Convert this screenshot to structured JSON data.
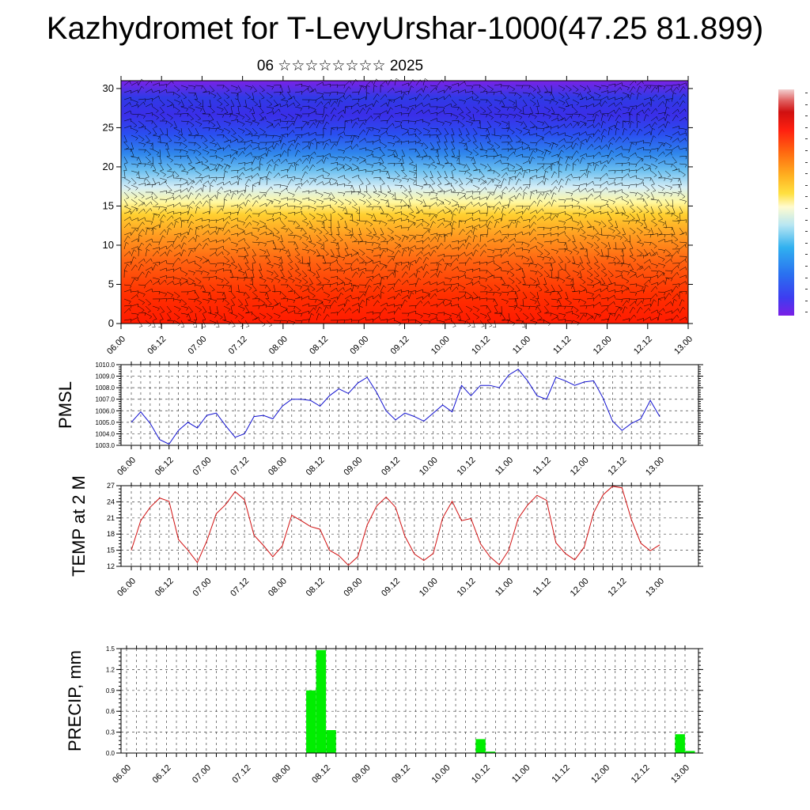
{
  "title": "Kazhydromet for T-LevyUrshar-1000(47.25 81.899)",
  "subtitle": "06 ☆☆☆☆☆☆☆☆ 2025",
  "colors": {
    "pmsl_line": "#1010d0",
    "temp_line": "#d01010",
    "precip_bar": "#00ee00",
    "grid": "#444444"
  },
  "chart_data": [
    {
      "type": "heatmap",
      "title": "",
      "xlabel": "",
      "ylabel": "",
      "x_ticks": [
        "06.00",
        "06.12",
        "07.00",
        "07.12",
        "08.00",
        "08.12",
        "09.00",
        "09.12",
        "10.00",
        "10.12",
        "11.00",
        "11.12",
        "12.00",
        "12.12",
        "13.00"
      ],
      "y_ticks": [
        0,
        5,
        10,
        15,
        20,
        25,
        30
      ],
      "ylim": [
        0,
        31
      ],
      "overlay": "wind barbs",
      "colorbar": "purple-blue-cyan-yellow-orange-red-pink"
    },
    {
      "type": "line",
      "ylabel": "PMSL",
      "ylim": [
        1003.0,
        1010.0
      ],
      "y_ticks": [
        "1003.0",
        "1004.0",
        "1005.0",
        "1006.0",
        "1007.0",
        "1008.0",
        "1009.0",
        "1010.0"
      ],
      "x_ticks": [
        "06.00",
        "06.12",
        "07.00",
        "07.12",
        "08.00",
        "08.12",
        "09.00",
        "09.12",
        "10.00",
        "10.12",
        "11.00",
        "11.12",
        "12.00",
        "12.12",
        "13.00"
      ],
      "series": [
        {
          "values": [
            1005.0,
            1005.9,
            1004.9,
            1003.5,
            1003.1,
            1004.3,
            1005.0,
            1004.5,
            1005.6,
            1005.8,
            1004.7,
            1003.7,
            1004.0,
            1005.5,
            1005.6,
            1005.3,
            1006.4,
            1007.0,
            1007.0,
            1006.9,
            1006.4,
            1007.3,
            1007.9,
            1007.5,
            1008.4,
            1008.9,
            1007.6,
            1006.0,
            1005.2,
            1005.8,
            1005.5,
            1005.1,
            1005.8,
            1006.5,
            1005.9,
            1008.2,
            1007.3,
            1008.2,
            1008.2,
            1008.0,
            1009.1,
            1009.6,
            1008.6,
            1007.3,
            1007.0,
            1008.9,
            1008.6,
            1008.2,
            1008.5,
            1008.6,
            1007.1,
            1005.1,
            1004.3,
            1004.9,
            1005.3,
            1006.9,
            1005.5
          ]
        }
      ]
    },
    {
      "type": "line",
      "ylabel": "TEMP at 2 M",
      "ylim": [
        12,
        27
      ],
      "y_ticks": [
        "12",
        "15",
        "18",
        "21",
        "24",
        "27"
      ],
      "x_ticks": [
        "06.00",
        "06.12",
        "07.00",
        "07.12",
        "08.00",
        "08.12",
        "09.00",
        "09.12",
        "10.00",
        "10.12",
        "11.00",
        "11.12",
        "12.00",
        "12.12",
        "13.00"
      ],
      "series": [
        {
          "values": [
            15.0,
            20.5,
            23.0,
            24.7,
            24.1,
            17.0,
            15.0,
            12.7,
            16.7,
            21.8,
            23.5,
            25.9,
            24.4,
            17.8,
            15.9,
            13.8,
            15.8,
            21.5,
            20.5,
            19.4,
            18.9,
            15.0,
            14.0,
            12.2,
            13.8,
            19.7,
            23.2,
            24.9,
            23.0,
            17.6,
            14.3,
            13.1,
            14.4,
            21.0,
            24.1,
            20.5,
            20.9,
            16.2,
            13.8,
            12.3,
            15.0,
            20.9,
            23.4,
            25.2,
            24.3,
            16.4,
            14.4,
            13.2,
            15.6,
            22.0,
            25.3,
            26.9,
            26.6,
            20.7,
            16.3,
            14.9,
            16.0
          ]
        }
      ]
    },
    {
      "type": "bar",
      "ylabel": "PRECIP, mm",
      "ylim": [
        0.0,
        1.5
      ],
      "y_ticks": [
        "0.0",
        "0.3",
        "0.6",
        "0.9",
        "1.2",
        "1.5"
      ],
      "x_ticks": [
        "06.00",
        "06.12",
        "07.00",
        "07.12",
        "08.00",
        "08.12",
        "09.00",
        "09.12",
        "10.00",
        "10.12",
        "11.00",
        "11.12",
        "12.00",
        "12.12",
        "13.00"
      ],
      "series": [
        {
          "values": [
            0,
            0,
            0,
            0,
            0,
            0,
            0,
            0,
            0,
            0,
            0,
            0,
            0,
            0,
            0,
            0,
            0,
            0,
            0.9,
            1.48,
            0.33,
            0,
            0,
            0,
            0,
            0,
            0,
            0,
            0,
            0,
            0,
            0,
            0,
            0,
            0,
            0.2,
            0.02,
            0,
            0,
            0,
            0,
            0,
            0,
            0,
            0,
            0,
            0,
            0,
            0,
            0,
            0,
            0,
            0,
            0,
            0,
            0.27,
            0.03
          ]
        }
      ]
    }
  ]
}
